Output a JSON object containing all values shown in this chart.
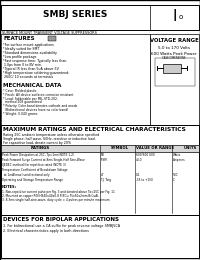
{
  "title": "SMBJ SERIES",
  "subtitle": "SURFACE MOUNT TRANSIENT VOLTAGE SUPPRESSORS",
  "voltage_range_title": "VOLTAGE RANGE",
  "voltage_range": "5.0 to 170 Volts",
  "power": "600 Watts Peak Power",
  "features_title": "FEATURES",
  "features": [
    "*For surface mount applications",
    "*Ideally suited for SMT",
    "*Standard dimensions availability",
    "*Low profile package",
    "*Fast response time: Typically less than",
    " 1.0ps from 0 to BV min.",
    "*Typical IR less than 5uA above 5V",
    "*High temperature soldering guaranteed:",
    " 260C/ 10 seconds at terminals"
  ],
  "mech_title": "MECHANICAL DATA",
  "mech": [
    "* Case: Molded plastic",
    "* Finish: All device surfaces corrosion resistant",
    "* Lead: Solderable per MIL-STD-202,",
    "  method 208 guaranteed",
    "* Polarity: Color band denotes cathode and anode",
    "  (Bidirectional devices have no color band)",
    "* Weight: 0.040 grams"
  ],
  "max_ratings_title": "MAXIMUM RATINGS AND ELECTRICAL CHARACTERISTICS",
  "max_ratings_sub1": "Rating 25C ambient temperature unless otherwise specified",
  "max_ratings_sub2": "Single phase, half wave, 60Hz, resistive or inductive load.",
  "max_ratings_sub3": "For capacitive load, derate current by 20%",
  "col_headers": [
    "RATINGS",
    "SYMBOL",
    "VALUE OR RANGE",
    "UNITS"
  ],
  "table_rows": [
    [
      "Peak Power Dissipation at 25C, Tp=1ms(NOTE 1,2)",
      "PD",
      "600/600 600",
      "Watts"
    ],
    [
      "Peak Forward Surge Current at 8ms Single-Half Sine-Wave",
      "IFSM",
      "40.0",
      "Amperes"
    ],
    [
      "(JEDEC method) for repetitive rated (NOTE 3)",
      "",
      "",
      ""
    ],
    [
      "Temperature Coefficient of Breakdown Voltage",
      "",
      "",
      ""
    ],
    [
      "  at 1mA(max) unidirectional only",
      "aT",
      "0.1",
      "%/C"
    ],
    [
      "Operating and Storage Temperature Range",
      "TJ, Tstg",
      "-55 to +150",
      "C"
    ]
  ],
  "notes_title": "NOTES:",
  "notes": [
    "1. Non-repetitive current pulse per Fig. 3 and derated above Ta=25C per Fig. 11",
    "2. Mounted on copper P/N HS40x40x0.8 P/BCu 75x50x2mm B/CuAL",
    "3. 8.3ms single half-sine-wave, duty cycle = 4 pulses per minute maximum"
  ],
  "bipolar_title": "DEVICES FOR BIPOLAR APPLICATIONS",
  "bipolar": [
    "1. For bidirectional use a CA suffix for peak reverse voltage SMBJ5CA",
    "2. Electrical characteristics apply in both directions"
  ],
  "bg_color": "#ffffff",
  "section_bg": "#f0f0f0"
}
